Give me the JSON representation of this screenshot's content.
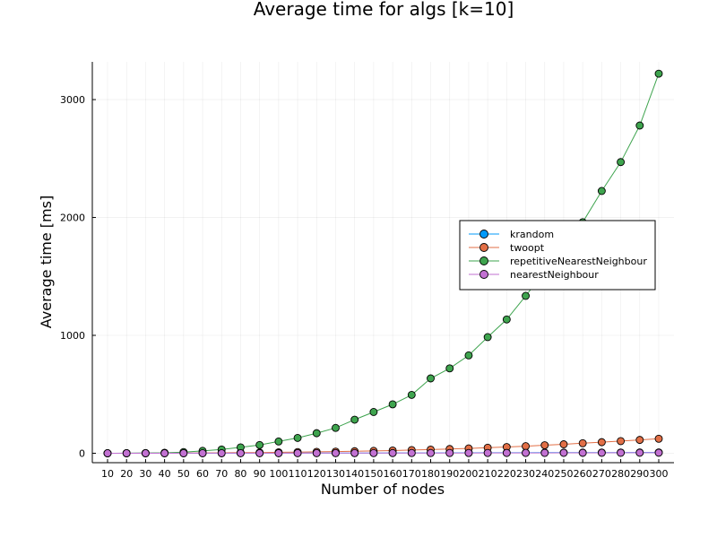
{
  "chart_data": {
    "type": "line",
    "title": "Average time for algs [k=10]",
    "xlabel": "Number of nodes",
    "ylabel": "Average time [ms]",
    "x": [
      10,
      20,
      30,
      40,
      50,
      60,
      70,
      80,
      90,
      100,
      110,
      120,
      130,
      140,
      150,
      160,
      170,
      180,
      190,
      200,
      210,
      220,
      230,
      240,
      250,
      260,
      270,
      280,
      290,
      300
    ],
    "xlim": [
      10,
      300
    ],
    "ylim": [
      -80,
      3320
    ],
    "yticks": [
      0,
      1000,
      2000,
      3000
    ],
    "grid": true,
    "legend_position": "right",
    "series": [
      {
        "name": "krandom",
        "color": "#009AFA",
        "values": [
          0.1,
          0.2,
          0.3,
          0.4,
          0.5,
          0.6,
          0.8,
          1,
          1.2,
          1.4,
          1.6,
          1.8,
          2,
          2.2,
          2.4,
          2.6,
          2.9,
          3.2,
          3.5,
          3.8,
          4.1,
          4.4,
          4.7,
          5,
          5.3,
          5.6,
          6,
          6.3,
          6.7,
          7
        ]
      },
      {
        "name": "twoopt",
        "color": "#E26F46",
        "values": [
          0,
          0.2,
          0.5,
          1,
          2,
          3,
          4,
          5,
          6,
          8,
          10,
          12,
          14,
          17,
          20,
          23,
          27,
          31,
          36,
          41,
          47,
          53,
          60,
          68,
          76,
          85,
          94,
          103,
          113,
          123
        ]
      },
      {
        "name": "repetitiveNearestNeighbour",
        "color": "#3EA44E",
        "values": [
          0.1,
          0.5,
          1.5,
          4,
          10,
          20,
          32,
          50,
          70,
          100,
          130,
          170,
          215,
          285,
          350,
          415,
          495,
          635,
          720,
          830,
          985,
          1135,
          1335,
          1545,
          1750,
          1960,
          2225,
          2470,
          2780,
          3220
        ]
      },
      {
        "name": "nearestNeighbour",
        "color": "#C271D2",
        "values": [
          0,
          0.1,
          0.1,
          0.2,
          0.3,
          0.4,
          0.5,
          0.6,
          0.7,
          0.8,
          1,
          1.1,
          1.2,
          1.4,
          1.5,
          1.7,
          1.9,
          2,
          2.2,
          2.4,
          2.6,
          2.8,
          3,
          3.2,
          3.4,
          3.6,
          3.9,
          4.1,
          4.4,
          4.6
        ]
      }
    ]
  }
}
